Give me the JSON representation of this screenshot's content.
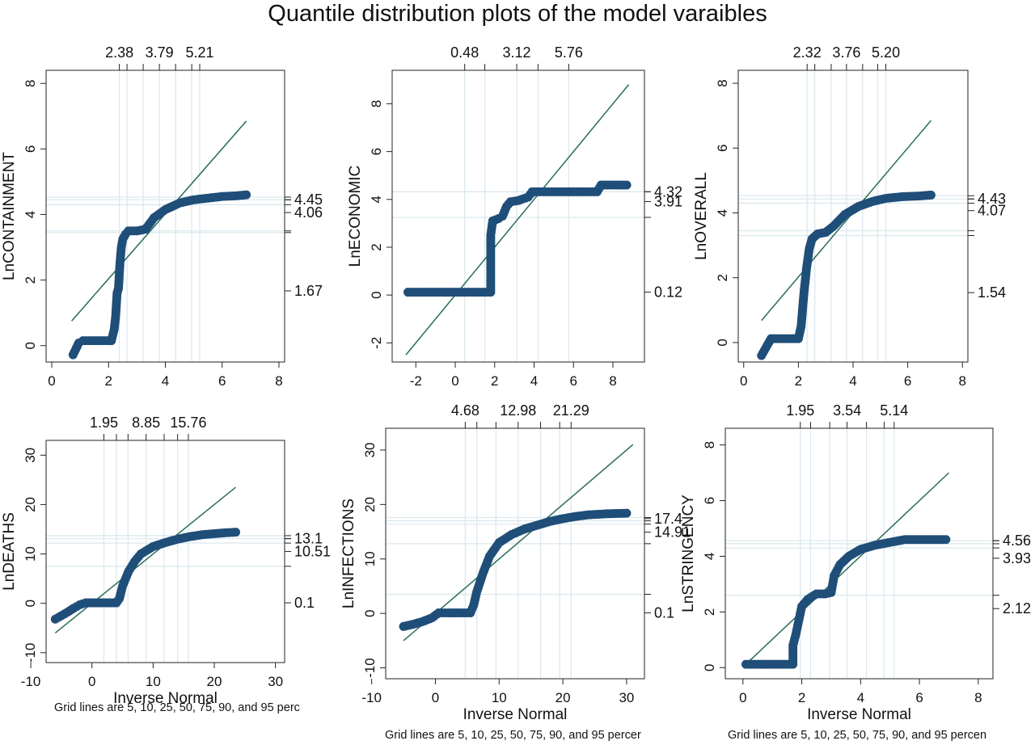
{
  "page": {
    "title": "Quantile distribution plots of the model varaibles"
  },
  "colors": {
    "points": "#1f4e79",
    "diagonal": "#2a6b5a",
    "grid": "#dbe9ee",
    "axis": "#222222"
  },
  "chart_data": [
    {
      "type": "scatter",
      "ylabel": "LnCONTAINMENT",
      "xlabel": "",
      "note": "",
      "xlim": [
        -0.2,
        8.2
      ],
      "ylim": [
        -0.5,
        8.4
      ],
      "xticks": [
        0,
        2,
        4,
        6,
        8
      ],
      "yticks": [
        0,
        2,
        4,
        6,
        8
      ],
      "top_labels": [
        "2.38",
        "3.79",
        "5.21"
      ],
      "top_label_values": [
        2.38,
        3.79,
        5.21
      ],
      "top_ticks": [
        2.38,
        2.65,
        3.22,
        3.79,
        4.36,
        4.93,
        5.21
      ],
      "right_labels": [
        "4.45",
        "4.06",
        "1.67"
      ],
      "right_label_values": [
        4.45,
        4.06,
        1.67
      ],
      "right_ticks": [
        4.53,
        4.45,
        4.3,
        3.5,
        3.45
      ],
      "diagonal": [
        [
          0.7,
          0.75
        ],
        [
          6.85,
          6.85
        ]
      ],
      "points": [
        [
          0.75,
          -0.28
        ],
        [
          0.95,
          0.08
        ],
        [
          1.1,
          0.15
        ],
        [
          1.6,
          0.15
        ],
        [
          2.1,
          0.15
        ],
        [
          2.2,
          0.5
        ],
        [
          2.25,
          0.9
        ],
        [
          2.3,
          1.6
        ],
        [
          2.35,
          1.75
        ],
        [
          2.4,
          2.5
        ],
        [
          2.45,
          3.0
        ],
        [
          2.5,
          3.25
        ],
        [
          2.6,
          3.4
        ],
        [
          2.7,
          3.5
        ],
        [
          3.0,
          3.5
        ],
        [
          3.3,
          3.55
        ],
        [
          3.6,
          3.9
        ],
        [
          4.0,
          4.15
        ],
        [
          4.5,
          4.35
        ],
        [
          5.0,
          4.45
        ],
        [
          5.5,
          4.5
        ],
        [
          6.0,
          4.55
        ],
        [
          6.5,
          4.57
        ],
        [
          6.85,
          4.6
        ]
      ]
    },
    {
      "type": "scatter",
      "ylabel": "LnECONOMIC",
      "xlabel": "",
      "note": "",
      "xlim": [
        -3.2,
        9.6
      ],
      "ylim": [
        -2.8,
        9.4
      ],
      "xticks": [
        -2,
        0,
        2,
        4,
        6,
        8
      ],
      "yticks": [
        -2,
        0,
        2,
        4,
        6,
        8
      ],
      "top_labels": [
        "0.48",
        "3.12",
        "5.76"
      ],
      "top_label_values": [
        0.48,
        3.12,
        5.76
      ],
      "top_ticks": [
        0.48,
        1.5,
        3.12,
        4.2,
        5.76
      ],
      "right_labels": [
        "4.32",
        "3.91",
        "0.12"
      ],
      "right_label_values": [
        4.32,
        3.91,
        0.12
      ],
      "right_ticks": [
        4.32,
        3.25
      ],
      "diagonal": [
        [
          -2.5,
          -2.5
        ],
        [
          8.8,
          8.8
        ]
      ],
      "points": [
        [
          -2.4,
          0.12
        ],
        [
          -1.5,
          0.12
        ],
        [
          -0.5,
          0.12
        ],
        [
          0.5,
          0.12
        ],
        [
          1.2,
          0.12
        ],
        [
          1.8,
          0.12
        ],
        [
          1.8,
          2.5
        ],
        [
          1.9,
          3.1
        ],
        [
          2.2,
          3.2
        ],
        [
          2.4,
          3.3
        ],
        [
          2.6,
          3.7
        ],
        [
          2.8,
          3.9
        ],
        [
          3.2,
          3.95
        ],
        [
          3.7,
          4.1
        ],
        [
          3.9,
          4.32
        ],
        [
          5.0,
          4.32
        ],
        [
          6.5,
          4.32
        ],
        [
          7.2,
          4.32
        ],
        [
          7.4,
          4.6
        ],
        [
          8.0,
          4.6
        ],
        [
          8.7,
          4.6
        ]
      ]
    },
    {
      "type": "scatter",
      "ylabel": "LnOVERALL",
      "xlabel": "",
      "note": "",
      "xlim": [
        -0.2,
        8.2
      ],
      "ylim": [
        -0.6,
        8.4
      ],
      "xticks": [
        0,
        2,
        4,
        6,
        8
      ],
      "yticks": [
        0,
        2,
        4,
        6,
        8
      ],
      "top_labels": [
        "2.32",
        "3.76",
        "5.20"
      ],
      "top_label_values": [
        2.32,
        3.76,
        5.2
      ],
      "top_ticks": [
        2.32,
        2.6,
        3.2,
        3.76,
        4.35,
        4.9,
        5.2
      ],
      "right_labels": [
        "4.43",
        "4.07",
        "1.54"
      ],
      "right_label_values": [
        4.43,
        4.07,
        1.54
      ],
      "right_ticks": [
        4.53,
        4.43,
        4.3,
        3.45,
        3.3
      ],
      "diagonal": [
        [
          0.65,
          0.68
        ],
        [
          6.85,
          6.85
        ]
      ],
      "points": [
        [
          0.65,
          -0.4
        ],
        [
          0.85,
          -0.1
        ],
        [
          1.0,
          0.12
        ],
        [
          1.5,
          0.12
        ],
        [
          2.0,
          0.12
        ],
        [
          2.1,
          0.5
        ],
        [
          2.2,
          1.5
        ],
        [
          2.3,
          2.3
        ],
        [
          2.4,
          2.9
        ],
        [
          2.5,
          3.2
        ],
        [
          2.7,
          3.35
        ],
        [
          3.0,
          3.4
        ],
        [
          3.3,
          3.6
        ],
        [
          3.7,
          3.95
        ],
        [
          4.2,
          4.2
        ],
        [
          4.7,
          4.35
        ],
        [
          5.2,
          4.45
        ],
        [
          5.8,
          4.5
        ],
        [
          6.4,
          4.52
        ],
        [
          6.85,
          4.55
        ]
      ]
    },
    {
      "type": "scatter",
      "ylabel": "LnDEATHS",
      "xlabel": "Inverse Normal",
      "note": "Grid lines are 5, 10, 25, 50, 75, 90, and 95 perc",
      "xlim": [
        -7.5,
        31.5
      ],
      "ylim": [
        -12,
        33
      ],
      "xticks": [
        -10,
        0,
        10,
        20,
        30
      ],
      "yticks": [
        -10,
        0,
        10,
        20,
        30
      ],
      "top_labels": [
        "1.95",
        "8.85",
        "15.76"
      ],
      "top_label_values": [
        1.95,
        8.85,
        15.76
      ],
      "top_ticks": [
        1.95,
        4.0,
        5.9,
        8.85,
        11.8,
        14.0,
        15.76
      ],
      "right_labels": [
        "13.1",
        "10.51",
        "0.1"
      ],
      "right_label_values": [
        13.1,
        10.51,
        0.1
      ],
      "right_ticks": [
        13.7,
        13.1,
        12.2,
        7.5
      ],
      "diagonal": [
        [
          -6,
          -6
        ],
        [
          23.5,
          23.5
        ]
      ],
      "points": [
        [
          -6,
          -3.2
        ],
        [
          -5,
          -2.5
        ],
        [
          -4,
          -1.8
        ],
        [
          -3,
          -1.0
        ],
        [
          -2,
          -0.3
        ],
        [
          -1,
          0.1
        ],
        [
          1,
          0.1
        ],
        [
          3,
          0.1
        ],
        [
          4,
          0.1
        ],
        [
          4.5,
          1.0
        ],
        [
          5,
          3.5
        ],
        [
          6,
          6.5
        ],
        [
          7,
          8.5
        ],
        [
          8,
          10
        ],
        [
          10,
          11.5
        ],
        [
          12,
          12.3
        ],
        [
          14,
          13
        ],
        [
          16,
          13.5
        ],
        [
          18,
          13.9
        ],
        [
          20,
          14.1
        ],
        [
          22,
          14.3
        ],
        [
          23.5,
          14.4
        ]
      ]
    },
    {
      "type": "scatter",
      "ylabel": "LnINFECTIONS",
      "xlabel": "Inverse Normal",
      "note": "Grid lines are 5, 10, 25, 50, 75, 90, and 95 percer",
      "xlim": [
        -7.8,
        32.8
      ],
      "ylim": [
        -12,
        34
      ],
      "xticks": [
        -10,
        0,
        10,
        20,
        30
      ],
      "yticks": [
        -10,
        0,
        10,
        20,
        30
      ],
      "top_labels": [
        "4.68",
        "12.98",
        "21.29"
      ],
      "top_label_values": [
        4.68,
        12.98,
        21.29
      ],
      "top_ticks": [
        4.68,
        6.5,
        9.5,
        12.98,
        16.5,
        19.5,
        21.29
      ],
      "right_labels": [
        "17.4",
        "14.91",
        "0.1"
      ],
      "right_label_values": [
        17.4,
        14.91,
        0.1
      ],
      "right_ticks": [
        17.6,
        17.0,
        16.4,
        12.8,
        3.5
      ],
      "diagonal": [
        [
          -5,
          -5
        ],
        [
          31,
          31
        ]
      ],
      "points": [
        [
          -5,
          -2.4
        ],
        [
          -3.5,
          -2.0
        ],
        [
          -2,
          -1.5
        ],
        [
          -0.5,
          -0.8
        ],
        [
          0.5,
          0.1
        ],
        [
          2,
          0.1
        ],
        [
          4,
          0.1
        ],
        [
          5.5,
          0.1
        ],
        [
          6,
          1.5
        ],
        [
          6.5,
          4.0
        ],
        [
          7.5,
          7.5
        ],
        [
          8.5,
          10.5
        ],
        [
          10,
          13.0
        ],
        [
          12,
          14.5
        ],
        [
          14,
          15.5
        ],
        [
          16,
          16.2
        ],
        [
          18,
          16.9
        ],
        [
          20,
          17.4
        ],
        [
          22,
          17.8
        ],
        [
          24,
          18.1
        ],
        [
          27,
          18.3
        ],
        [
          30,
          18.4
        ]
      ]
    },
    {
      "type": "scatter",
      "ylabel": "LnSTRINGENCY",
      "xlabel": "Inverse Normal",
      "note": "Grid lines are 5, 10, 25, 50, 75, 90, and 95 percen",
      "xlim": [
        -0.6,
        8.5
      ],
      "ylim": [
        -0.4,
        8.6
      ],
      "xticks": [
        0,
        2,
        4,
        6,
        8
      ],
      "yticks": [
        0,
        2,
        4,
        6,
        8
      ],
      "top_labels": [
        "1.95",
        "3.54",
        "5.14"
      ],
      "top_label_values": [
        1.95,
        3.54,
        5.14
      ],
      "top_ticks": [
        1.95,
        2.3,
        2.95,
        3.54,
        4.2,
        4.8,
        5.14
      ],
      "right_labels": [
        "4.56",
        "3.93",
        "2.12"
      ],
      "right_label_values": [
        4.56,
        3.93,
        2.12
      ],
      "right_ticks": [
        4.56,
        4.45,
        4.3,
        2.6
      ],
      "diagonal": [
        [
          0.1,
          0.12
        ],
        [
          7.0,
          7.0
        ]
      ],
      "points": [
        [
          0.1,
          0.12
        ],
        [
          0.5,
          0.12
        ],
        [
          1.0,
          0.12
        ],
        [
          1.5,
          0.12
        ],
        [
          1.7,
          0.12
        ],
        [
          1.7,
          0.8
        ],
        [
          1.8,
          1.2
        ],
        [
          1.9,
          1.7
        ],
        [
          2.0,
          2.2
        ],
        [
          2.2,
          2.45
        ],
        [
          2.5,
          2.65
        ],
        [
          2.8,
          2.65
        ],
        [
          3.0,
          2.7
        ],
        [
          3.1,
          3.3
        ],
        [
          3.3,
          3.7
        ],
        [
          3.6,
          4.0
        ],
        [
          4.0,
          4.25
        ],
        [
          4.5,
          4.4
        ],
        [
          5.0,
          4.5
        ],
        [
          5.5,
          4.6
        ],
        [
          6.2,
          4.6
        ],
        [
          6.9,
          4.6
        ]
      ]
    }
  ]
}
